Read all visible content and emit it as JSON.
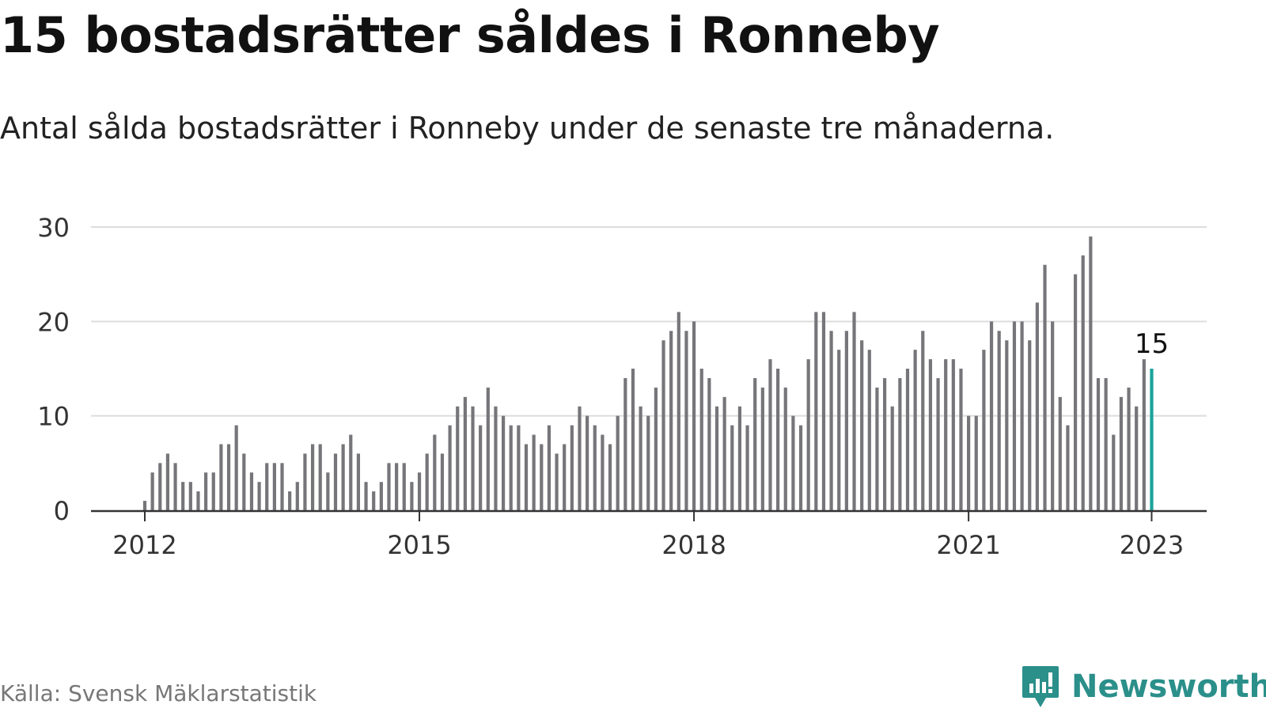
{
  "title": "15 bostadsrätter såldes i Ronneby",
  "subtitle": "Antal sålda bostadsrätter i Ronneby under de senaste tre månaderna.",
  "source": "Källa: Svensk Mäklarstatistik",
  "brand": {
    "name": "Newsworthy",
    "color": "#2b8f8a",
    "icon": "newsworthy-logo-icon"
  },
  "colors": {
    "bar": "#76767a",
    "highlight": "#1aa39a",
    "grid": "#dddddd",
    "axis": "#333333"
  },
  "chart_data": {
    "type": "bar",
    "x_start": "2012-01",
    "x_ticks": [
      "2012",
      "2015",
      "2018",
      "2021",
      "2023"
    ],
    "values": [
      1,
      4,
      5,
      6,
      5,
      3,
      3,
      2,
      4,
      4,
      7,
      7,
      9,
      6,
      4,
      3,
      5,
      5,
      5,
      2,
      3,
      6,
      7,
      7,
      4,
      6,
      7,
      8,
      6,
      3,
      2,
      3,
      5,
      5,
      5,
      3,
      4,
      6,
      8,
      6,
      9,
      11,
      12,
      11,
      9,
      13,
      11,
      10,
      9,
      9,
      7,
      8,
      7,
      9,
      6,
      7,
      9,
      11,
      10,
      9,
      8,
      7,
      10,
      14,
      15,
      11,
      10,
      13,
      18,
      19,
      21,
      19,
      20,
      15,
      14,
      11,
      12,
      9,
      11,
      9,
      14,
      13,
      16,
      15,
      13,
      10,
      9,
      16,
      21,
      21,
      19,
      17,
      19,
      21,
      18,
      17,
      13,
      14,
      11,
      14,
      15,
      17,
      19,
      16,
      14,
      16,
      16,
      15,
      10,
      10,
      17,
      20,
      19,
      18,
      20,
      20,
      18,
      22,
      26,
      20,
      12,
      9,
      25,
      27,
      29,
      14,
      14,
      8,
      12,
      13,
      11,
      16,
      15
    ],
    "highlight_label": "15",
    "y_ticks": [
      0,
      10,
      20,
      30
    ],
    "ylim": [
      0,
      30
    ],
    "grid": true
  }
}
